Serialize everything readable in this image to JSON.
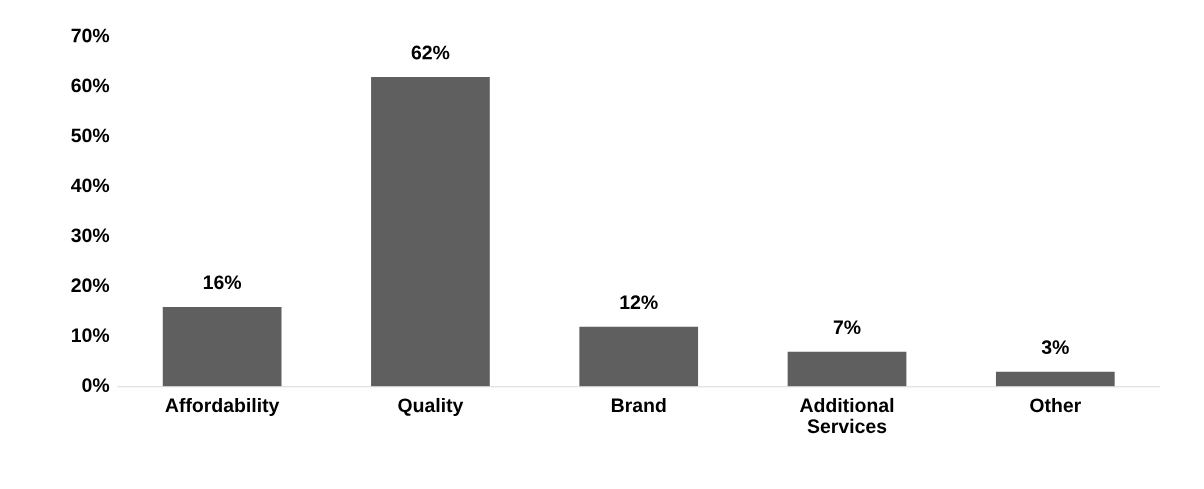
{
  "chart_data": {
    "type": "bar",
    "categories": [
      "Affordability",
      "Quality",
      "Brand",
      "Additional Services",
      "Other"
    ],
    "values": [
      16,
      62,
      12,
      7,
      3
    ],
    "value_labels": [
      "16%",
      "62%",
      "12%",
      "7%",
      "3%"
    ],
    "color": "#5f5f5f",
    "ylim": [
      0,
      70
    ],
    "yticks": [
      {
        "value": 0,
        "label": "0%"
      },
      {
        "value": 10,
        "label": "10%"
      },
      {
        "value": 20,
        "label": "20%"
      },
      {
        "value": 30,
        "label": "30%"
      },
      {
        "value": 40,
        "label": "40%"
      },
      {
        "value": 50,
        "label": "50%"
      },
      {
        "value": 60,
        "label": "60%"
      },
      {
        "value": 70,
        "label": "70%"
      }
    ],
    "grid": false,
    "legend": false
  }
}
